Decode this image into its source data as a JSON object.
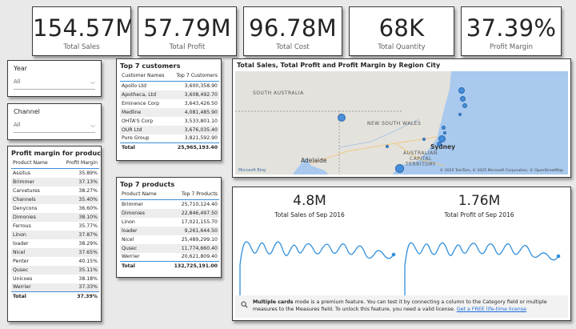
{
  "kpis": [
    {
      "value": "154.57M",
      "label": "Total Sales"
    },
    {
      "value": "57.79M",
      "label": "Total Profit"
    },
    {
      "value": "96.78M",
      "label": "Total Cost"
    },
    {
      "value": "68K",
      "label": "Total Quantity"
    },
    {
      "value": "37.39%",
      "label": "Profit Margin"
    }
  ],
  "slicers": {
    "year": {
      "title": "Year",
      "value": "All"
    },
    "channel": {
      "title": "Channel",
      "value": "All"
    }
  },
  "margin_table": {
    "title": "Profit margin for products",
    "headers": [
      "Product Name",
      "Profit Margin"
    ],
    "rows": [
      [
        "Assitus",
        "35.89%"
      ],
      [
        "Brimmer",
        "37.13%"
      ],
      [
        "Carvetures",
        "38.27%"
      ],
      [
        "Channels",
        "35.40%"
      ],
      [
        "Denycons",
        "36.60%"
      ],
      [
        "Dimonies",
        "38.10%"
      ],
      [
        "Ferrous",
        "35.77%"
      ],
      [
        "Linon",
        "37.87%"
      ],
      [
        "loader",
        "38.29%"
      ],
      [
        "Nicel",
        "37.65%"
      ],
      [
        "Penter",
        "40.15%"
      ],
      [
        "Qusec",
        "35.11%"
      ],
      [
        "Unicoes",
        "38.18%"
      ],
      [
        "Werrier",
        "37.33%"
      ]
    ],
    "total": [
      "Total",
      "37.39%"
    ]
  },
  "customers_table": {
    "title": "Top 7 customers",
    "headers": [
      "Customer Names",
      "Top 7 Customers"
    ],
    "rows": [
      [
        "Apollo Ltd",
        "3,600,358.90"
      ],
      [
        "Apotheca, Ltd",
        "3,608,492.70"
      ],
      [
        "Eminence Corp",
        "3,643,426.50"
      ],
      [
        "Medline",
        "4,081,485.90"
      ],
      [
        "OHTA'S Corp",
        "3,533,801.10"
      ],
      [
        "OUR Ltd",
        "3,676,035.40"
      ],
      [
        "Pure Group",
        "3,821,592.90"
      ]
    ],
    "total": [
      "Total",
      "25,965,193.40"
    ]
  },
  "products_table": {
    "title": "Top 7 products",
    "headers": [
      "Product Name",
      "Top 7 Products"
    ],
    "rows": [
      [
        "Brimmer",
        "25,710,124.40"
      ],
      [
        "Dimonies",
        "22,846,497.50"
      ],
      [
        "Linon",
        "17,021,155.70"
      ],
      [
        "loader",
        "9,261,644.50"
      ],
      [
        "Nicel",
        "25,489,299.10"
      ],
      [
        "Qusec",
        "11,774,660.40"
      ],
      [
        "Werrier",
        "20,621,809.40"
      ]
    ],
    "total": [
      "Total",
      "132,725,191.00"
    ]
  },
  "map": {
    "title": "Total Sales, Total Profit and Profit Margin by Region City",
    "labels": {
      "south_australia": "SOUTH AUSTRALIA",
      "nsw": "NEW SOUTH WALES",
      "act1": "AUSTRALIAN",
      "act2": "CAPITAL",
      "act3": "TERRITORY",
      "sydney": "Sydney",
      "adelaide": "Adelaide"
    },
    "bing": "Microsoft Bing",
    "attribution": "© 2020 TomTom, © 2025 Microsoft Corporation, © OpenStreetMap",
    "water_color": "#a9c9ee",
    "bubble_color": "#3a87d8"
  },
  "multicard": {
    "cards": [
      {
        "value": "4.8M",
        "label": "Total Sales of Sep 2016"
      },
      {
        "value": "1.76M",
        "label": "Total Profit of Sep 2016"
      }
    ],
    "banner_bold": "Multiple cards",
    "banner_text": " mode is a premium feature. You can test it by connecting a column to the Category field or multiple measures to the Measures field. To unlock this feature, you need a valid license. ",
    "banner_link": "Get a FREE life-time license",
    "line_color": "#2f8fdc"
  }
}
